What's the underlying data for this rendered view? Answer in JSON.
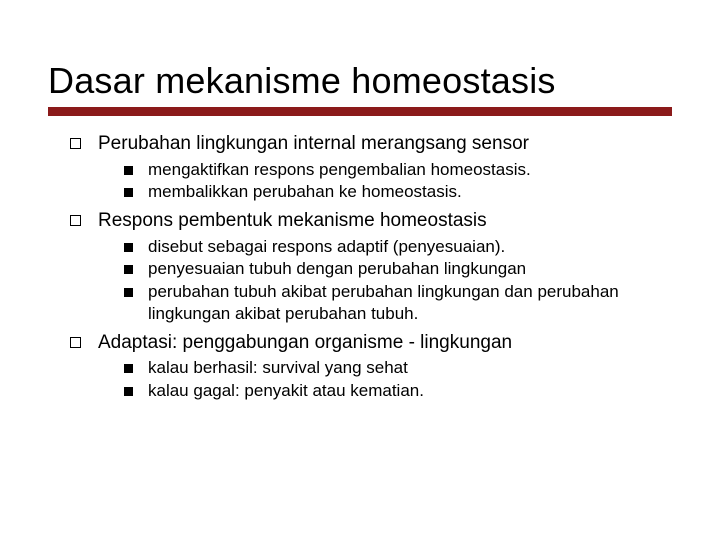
{
  "slide": {
    "title": "Dasar mekanisme homeostasis",
    "title_fontsize": 36,
    "title_color": "#000000",
    "rule_color": "#8b1a1a",
    "rule_height": 9,
    "background_color": "#ffffff",
    "body_fontsize_lvl1": 19,
    "body_fontsize_lvl2": 17,
    "bullet_lvl1_style": "hollow-square",
    "bullet_lvl2_style": "filled-square",
    "bullet_color": "#000000",
    "items": [
      {
        "text": "Perubahan lingkungan internal merangsang sensor",
        "sub": [
          {
            "text": "mengaktifkan respons pengembalian homeostasis."
          },
          {
            "text": "membalikkan perubahan ke homeostasis."
          }
        ]
      },
      {
        "text": "Respons pembentuk mekanisme homeostasis",
        "sub": [
          {
            "text": "disebut sebagai respons adaptif (penyesuaian)."
          },
          {
            "text": "penyesuaian tubuh dengan perubahan lingkungan"
          },
          {
            "text": "perubahan tubuh akibat perubahan lingkungan dan perubahan lingkungan akibat perubahan tubuh."
          }
        ]
      },
      {
        "text": "Adaptasi: penggabungan organisme - lingkungan",
        "sub": [
          {
            "text": "kalau berhasil: survival yang sehat"
          },
          {
            "text": "kalau gagal: penyakit atau kematian."
          }
        ]
      }
    ]
  }
}
